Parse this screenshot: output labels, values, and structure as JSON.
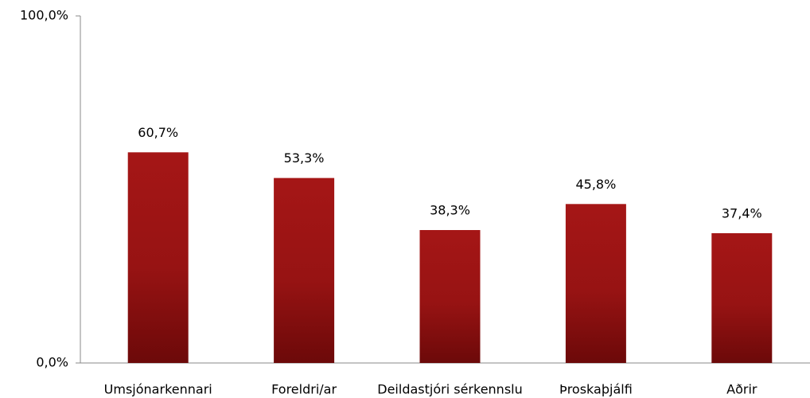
{
  "chart_data": {
    "type": "bar",
    "categories": [
      "Umsjónarkennari",
      "Foreldri/ar",
      "Deildastjóri sérkennslu",
      "Þroskaþjálfi",
      "Aðrir"
    ],
    "values": [
      60.7,
      53.3,
      38.3,
      45.8,
      37.4
    ],
    "value_labels": [
      "60,7%",
      "53,3%",
      "38,3%",
      "45,8%",
      "37,4%"
    ],
    "color": "#a01414",
    "ylim": [
      0,
      100
    ],
    "yticks": [
      {
        "value": 0,
        "label": "0,0%"
      },
      {
        "value": 100,
        "label": "100,0%"
      }
    ],
    "grid": false
  }
}
